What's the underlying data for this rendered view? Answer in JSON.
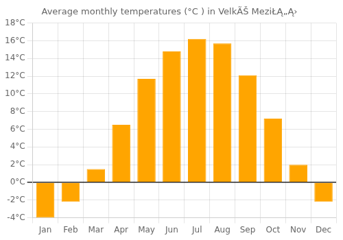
{
  "chart_data": {
    "type": "bar",
    "title": "Average monthly temperatures (°C ) in VelkÃŠ MeziŁĄ„Ą›",
    "categories": [
      "Jan",
      "Feb",
      "Mar",
      "Apr",
      "May",
      "Jun",
      "Jul",
      "Aug",
      "Sep",
      "Oct",
      "Nov",
      "Dec"
    ],
    "values": [
      -4.0,
      -2.2,
      1.5,
      6.5,
      11.7,
      14.8,
      16.2,
      15.7,
      12.1,
      7.2,
      2.0,
      -2.2
    ],
    "color": "#FFA500",
    "ylim": [
      -4,
      18
    ],
    "yticks": [
      {
        "value": -4,
        "label": "-4°C"
      },
      {
        "value": -2,
        "label": "-2°C"
      },
      {
        "value": 0,
        "label": "0°C"
      },
      {
        "value": 2,
        "label": "2°C"
      },
      {
        "value": 4,
        "label": "4°C"
      },
      {
        "value": 6,
        "label": "6°C"
      },
      {
        "value": 8,
        "label": "8°C"
      },
      {
        "value": 10,
        "label": "10°C"
      },
      {
        "value": 12,
        "label": "12°C"
      },
      {
        "value": 14,
        "label": "14°C"
      },
      {
        "value": 16,
        "label": "16°C"
      },
      {
        "value": 18,
        "label": "18°C"
      }
    ],
    "grid": true
  }
}
